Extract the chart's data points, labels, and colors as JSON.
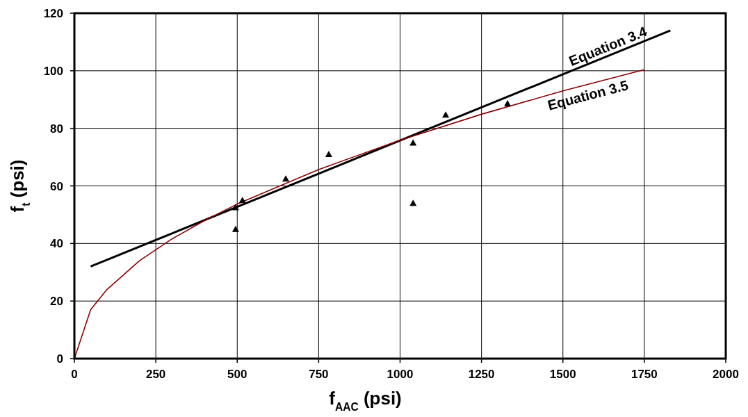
{
  "chart_data": {
    "type": "scatter",
    "xlabel": "f$_{AAC}$ (psi)",
    "ylabel": "f$_{t}$ (psi)",
    "xlim": [
      0,
      2000
    ],
    "xticks": [
      0,
      250,
      500,
      750,
      1000,
      1250,
      1500,
      1750,
      2000
    ],
    "ylim": [
      0,
      120
    ],
    "yticks": [
      0,
      20,
      40,
      60,
      80,
      100,
      120
    ],
    "grid": true,
    "series": [
      {
        "type": "line",
        "name": "Equation 3.4",
        "color": "#000000",
        "marker": "none",
        "x": [
          50,
          1830
        ],
        "values": [
          32,
          114
        ]
      },
      {
        "type": "line",
        "name": "Equation 3.5",
        "color": "#8b0000",
        "marker": "none",
        "x": [
          0,
          50,
          100,
          200,
          300,
          400,
          500,
          750,
          1000,
          1250,
          1500,
          1750
        ],
        "values": [
          0,
          17,
          24,
          34,
          41.6,
          48,
          53.7,
          65.7,
          75.9,
          84.9,
          93,
          100.4
        ]
      },
      {
        "color": "#000000",
        "marker": "triangle",
        "x": [
          516,
          495,
          495,
          649,
          781,
          1040,
          1040,
          1140,
          1330
        ],
        "values": [
          55,
          52.5,
          45,
          62.5,
          71,
          75,
          54,
          84.7,
          88.6
        ]
      }
    ]
  }
}
